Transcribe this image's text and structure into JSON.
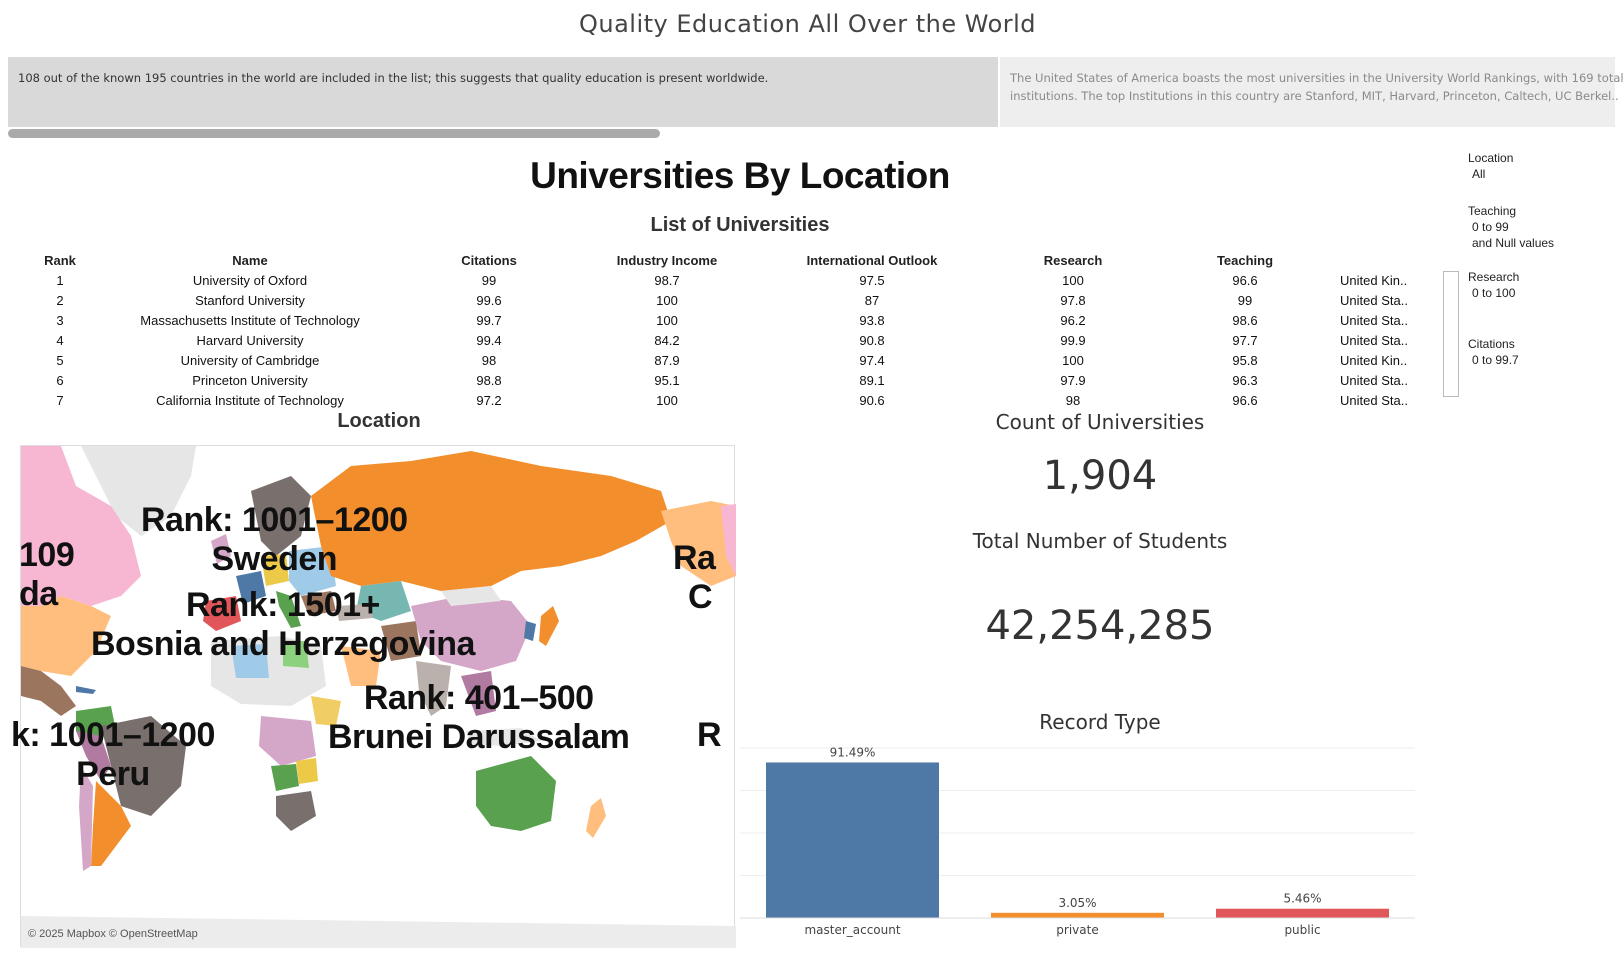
{
  "dashboard": {
    "title": "Quality Education All Over the World"
  },
  "story": {
    "point1": "108 out of the known 195 countries in the world are included in the list; this suggests that quality education is present worldwide.",
    "point2_line1": "The United States of America boasts the most universities in the University World Rankings, with 169 total",
    "point2_line2": "institutions. The top Institutions in this country are Stanford, MIT, Harvard, Princeton, Caltech, UC Berkel.."
  },
  "header": {
    "title": "Universities By Location",
    "list_title": "List of Universities"
  },
  "table": {
    "columns": [
      "Rank",
      "Name",
      "Citations",
      "Industry Income",
      "International Outlook",
      "Research",
      "Teaching",
      ""
    ],
    "rows": [
      [
        "1",
        "University of Oxford",
        "99",
        "98.7",
        "97.5",
        "100",
        "96.6",
        "United Kin.."
      ],
      [
        "2",
        "Stanford University",
        "99.6",
        "100",
        "87",
        "97.8",
        "99",
        "United Sta.."
      ],
      [
        "3",
        "Massachusetts Institute of Technology",
        "99.7",
        "100",
        "93.8",
        "96.2",
        "98.6",
        "United Sta.."
      ],
      [
        "4",
        "Harvard University",
        "99.4",
        "84.2",
        "90.8",
        "99.9",
        "97.7",
        "United Sta.."
      ],
      [
        "5",
        "University of Cambridge",
        "98",
        "87.9",
        "97.4",
        "100",
        "95.8",
        "United Kin.."
      ],
      [
        "6",
        "Princeton University",
        "98.8",
        "95.1",
        "89.1",
        "97.9",
        "96.3",
        "United Sta.."
      ],
      [
        "7",
        "California Institute of Technology",
        "97.2",
        "100",
        "90.6",
        "98",
        "96.6",
        "United Sta.."
      ]
    ]
  },
  "filters": [
    {
      "label": "Location",
      "values": [
        "All"
      ]
    },
    {
      "label": "Teaching",
      "values": [
        "0 to 99",
        "and Null values"
      ]
    },
    {
      "label": "Research",
      "values": [
        "0 to 100"
      ]
    },
    {
      "label": "Citations",
      "values": [
        "0 to 99.7"
      ]
    }
  ],
  "map": {
    "title": "Location",
    "credit": "© 2025 Mapbox © OpenStreetMap",
    "labels": [
      {
        "line1": "Rank: 1001–1200",
        "line2": "Sweden"
      },
      {
        "line1": "Rank: 1501+",
        "line2": "Bosnia and Herzegovina"
      },
      {
        "line1": "Rank: 401–500",
        "line2": "Brunei Darussalam"
      },
      {
        "line1": "k: 1001–1200",
        "line2": "Peru"
      },
      {
        "line1": "109",
        "line2": "da"
      },
      {
        "line1": "Ra",
        "line2": "C"
      },
      {
        "line1": "R",
        "line2": ""
      }
    ],
    "colors": {
      "russia": "#f28e2b",
      "canada": "#f7b6d2",
      "usa": "#ffbe7d",
      "brazil": "#79706e",
      "australia": "#59a14f",
      "china": "#d4a6c8",
      "background_land": "#e6e6e6"
    }
  },
  "kpis": {
    "count_title": "Count of Universities",
    "count_value": "1,904",
    "students_title": "Total Number of Students",
    "students_value": "42,254,285"
  },
  "chart_data": {
    "type": "bar",
    "title": "Record Type",
    "categories": [
      "master_account",
      "private",
      "public"
    ],
    "values": [
      91.49,
      3.05,
      5.46
    ],
    "value_labels": [
      "91.49%",
      "3.05%",
      "5.46%"
    ],
    "colors": [
      "#4e79a7",
      "#f28e2b",
      "#e15759"
    ],
    "ylim": [
      0,
      100
    ],
    "grid": true
  }
}
